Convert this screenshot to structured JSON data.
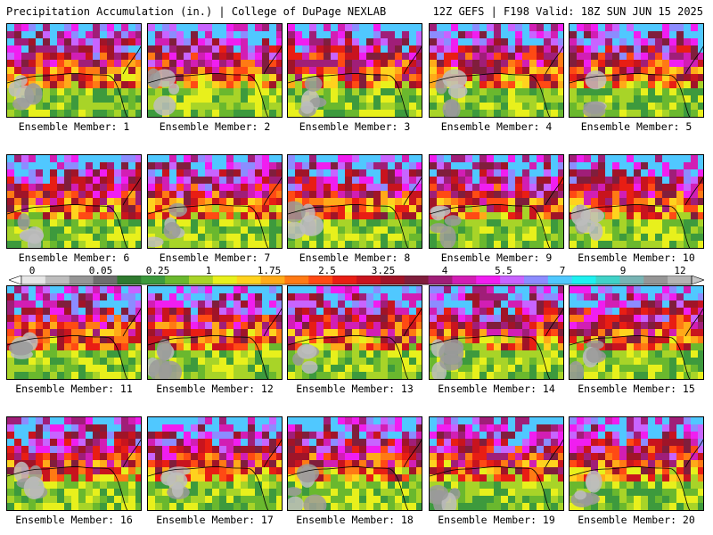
{
  "header": {
    "title": "Precipitation Accumulation (in.) | College of DuPage NEXLAB",
    "valid": "12Z GEFS | F198 Valid: 18Z SUN JUN 15 2025"
  },
  "members": [
    "Ensemble Member: 1",
    "Ensemble Member: 2",
    "Ensemble Member: 3",
    "Ensemble Member: 4",
    "Ensemble Member: 5",
    "Ensemble Member: 6",
    "Ensemble Member: 7",
    "Ensemble Member: 8",
    "Ensemble Member: 9",
    "Ensemble Member: 10",
    "Ensemble Member: 11",
    "Ensemble Member: 12",
    "Ensemble Member: 13",
    "Ensemble Member: 14",
    "Ensemble Member: 15",
    "Ensemble Member: 16",
    "Ensemble Member: 17",
    "Ensemble Member: 18",
    "Ensemble Member: 19",
    "Ensemble Member: 20"
  ],
  "colorbar": {
    "labels": [
      "0",
      "0.05",
      "0.25",
      "1",
      "1.75",
      "2.5",
      "3.25",
      "4",
      "5.5",
      "7",
      "9",
      "12"
    ],
    "colors": [
      "#e6e6e6",
      "#bdbdbd",
      "#969696",
      "#6e6e6e",
      "#2f7a2f",
      "#3d9a3d",
      "#6ab82e",
      "#a8d428",
      "#e8f01c",
      "#ffd21e",
      "#ffaa19",
      "#ff7a14",
      "#ff4a14",
      "#e81e14",
      "#c8141e",
      "#a01428",
      "#801e3c",
      "#a01e78",
      "#d21eb4",
      "#f01ef0",
      "#c864ff",
      "#8c8cff",
      "#50c8ff",
      "#1ef0f0",
      "#40d2c8",
      "#78b4b4",
      "#969696",
      "#b4b4b4"
    ]
  }
}
